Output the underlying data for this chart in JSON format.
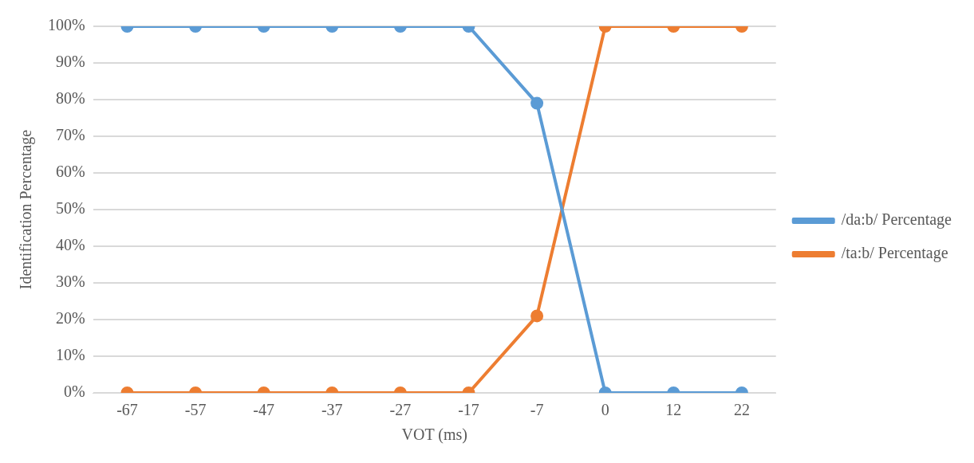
{
  "chart_data": {
    "type": "line",
    "xlabel": "VOT (ms)",
    "ylabel": "Identification Percentage",
    "categories": [
      "-67",
      "-57",
      "-47",
      "-37",
      "-27",
      "-17",
      "-7",
      "0",
      "12",
      "22"
    ],
    "series": [
      {
        "name": "/da:b/ Percentage",
        "color": "#5b9bd5",
        "values": [
          100,
          100,
          100,
          100,
          100,
          100,
          79,
          0,
          0,
          0
        ]
      },
      {
        "name": "/ta:b/ Percentage",
        "color": "#ed7d31",
        "values": [
          0,
          0,
          0,
          0,
          0,
          0,
          21,
          100,
          100,
          100
        ]
      }
    ],
    "ylim": [
      0,
      100
    ],
    "yticks": [
      {
        "value": 0,
        "label": "0%"
      },
      {
        "value": 10,
        "label": "10%"
      },
      {
        "value": 20,
        "label": "20%"
      },
      {
        "value": 30,
        "label": "30%"
      },
      {
        "value": 40,
        "label": "40%"
      },
      {
        "value": 50,
        "label": "50%"
      },
      {
        "value": 60,
        "label": "60%"
      },
      {
        "value": 70,
        "label": "70%"
      },
      {
        "value": 80,
        "label": "80%"
      },
      {
        "value": 90,
        "label": "90%"
      },
      {
        "value": 100,
        "label": "100%"
      }
    ],
    "grid": "y",
    "legend": "right",
    "marker": "circle",
    "line_style": "solid"
  }
}
